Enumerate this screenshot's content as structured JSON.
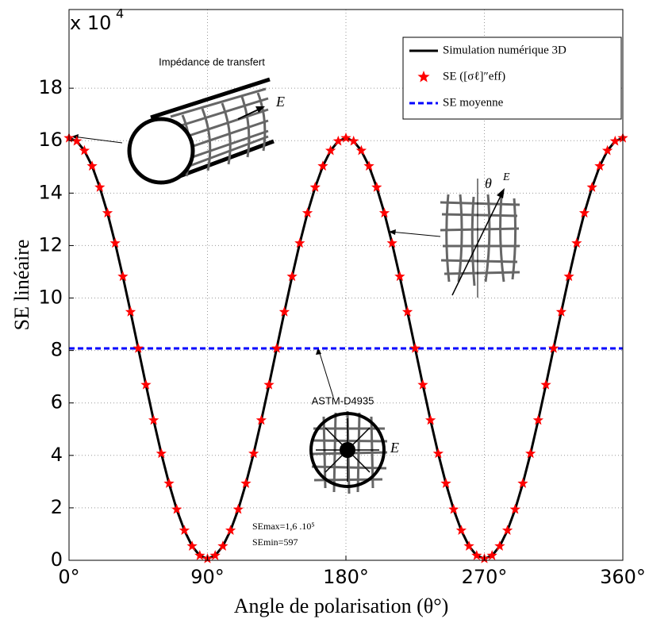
{
  "chart_data": {
    "type": "line",
    "x_label": "Angle de polarisation (θ°)",
    "y_label": "SE linéaire",
    "y_multiplier": {
      "base": "x 10",
      "exponent": "4"
    },
    "xlim": [
      0,
      360
    ],
    "xticks": [
      {
        "value": 0,
        "label": "0°"
      },
      {
        "value": 90,
        "label": "90°"
      },
      {
        "value": 180,
        "label": "180°"
      },
      {
        "value": 270,
        "label": "270°"
      },
      {
        "value": 360,
        "label": "360°"
      }
    ],
    "ylim": [
      0,
      21
    ],
    "yticks": [
      0,
      2,
      4,
      6,
      8,
      10,
      12,
      14,
      16,
      18
    ],
    "grid": true,
    "legend_position": "upper right",
    "x": [
      0,
      5,
      10,
      15,
      20,
      25,
      30,
      35,
      40,
      45,
      50,
      55,
      60,
      65,
      70,
      75,
      80,
      85,
      90,
      95,
      100,
      105,
      110,
      115,
      120,
      125,
      130,
      135,
      140,
      145,
      150,
      155,
      160,
      165,
      170,
      175,
      180,
      185,
      190,
      195,
      200,
      205,
      210,
      215,
      220,
      225,
      230,
      235,
      240,
      245,
      250,
      255,
      260,
      265,
      270,
      275,
      280,
      285,
      290,
      295,
      300,
      305,
      310,
      315,
      320,
      325,
      330,
      335,
      340,
      345,
      350,
      355,
      360
    ],
    "series": [
      {
        "name": "Simulation numérique 3D",
        "color": "#000000",
        "style": "line",
        "values": [
          16.1,
          15.98,
          15.62,
          15.03,
          14.22,
          13.24,
          12.09,
          10.82,
          9.47,
          8.08,
          6.69,
          5.34,
          4.07,
          2.93,
          1.94,
          1.14,
          0.54,
          0.18,
          0.06,
          0.18,
          0.54,
          1.14,
          1.94,
          2.93,
          4.07,
          5.34,
          6.69,
          8.08,
          9.47,
          10.82,
          12.09,
          13.24,
          14.22,
          15.03,
          15.62,
          15.98,
          16.1,
          15.98,
          15.62,
          15.03,
          14.22,
          13.24,
          12.09,
          10.82,
          9.47,
          8.08,
          6.69,
          5.34,
          4.07,
          2.93,
          1.94,
          1.14,
          0.54,
          0.18,
          0.06,
          0.18,
          0.54,
          1.14,
          1.94,
          2.93,
          4.07,
          5.34,
          6.69,
          8.08,
          9.47,
          10.82,
          12.09,
          13.24,
          14.22,
          15.03,
          15.62,
          15.98,
          16.1
        ]
      },
      {
        "name": "SE ([σℓ]″eff)",
        "color": "#ff0000",
        "style": "star",
        "values": [
          16.1,
          15.98,
          15.62,
          15.03,
          14.22,
          13.24,
          12.09,
          10.82,
          9.47,
          8.08,
          6.69,
          5.34,
          4.07,
          2.93,
          1.94,
          1.14,
          0.54,
          0.18,
          0.06,
          0.18,
          0.54,
          1.14,
          1.94,
          2.93,
          4.07,
          5.34,
          6.69,
          8.08,
          9.47,
          10.82,
          12.09,
          13.24,
          14.22,
          15.03,
          15.62,
          15.98,
          16.1,
          15.98,
          15.62,
          15.03,
          14.22,
          13.24,
          12.09,
          10.82,
          9.47,
          8.08,
          6.69,
          5.34,
          4.07,
          2.93,
          1.94,
          1.14,
          0.54,
          0.18,
          0.06,
          0.18,
          0.54,
          1.14,
          1.94,
          2.93,
          4.07,
          5.34,
          6.69,
          8.08,
          9.47,
          10.82,
          12.09,
          13.24,
          14.22,
          15.03,
          15.62,
          15.98,
          16.1
        ]
      },
      {
        "name": "SE moyenne",
        "color": "#0000ff",
        "style": "dashed",
        "x": [
          0,
          360
        ],
        "values": [
          8.08,
          8.08
        ]
      }
    ],
    "annotations": {
      "cylinder": "Impédance de transfert",
      "e_cylinder": "E",
      "theta": "θ",
      "e_mesh": "E",
      "astm": "ASTM-D4935",
      "e_astm": "E",
      "se_max": "SEmax=1,6 .10⁵",
      "se_min": "SEmin=597"
    }
  }
}
